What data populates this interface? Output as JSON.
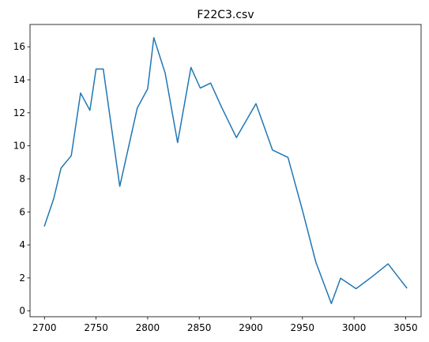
{
  "chart_data": {
    "type": "line",
    "title": "F22C3.csv",
    "xlabel": "",
    "ylabel": "",
    "xlim": [
      2686,
      3065
    ],
    "ylim": [
      -0.35,
      17.35
    ],
    "grid": false,
    "legend": "none",
    "line_color": "#1f77b4",
    "x_ticks": [
      2700,
      2750,
      2800,
      2850,
      2900,
      2950,
      3000,
      3050
    ],
    "x_tick_labels": [
      "2700",
      "2750",
      "2800",
      "2850",
      "2900",
      "2950",
      "3000",
      "3050"
    ],
    "y_ticks": [
      0,
      2,
      4,
      6,
      8,
      10,
      12,
      14,
      16
    ],
    "y_tick_labels": [
      "0",
      "2",
      "4",
      "6",
      "8",
      "10",
      "12",
      "14",
      "16"
    ],
    "series": [
      {
        "x": [
          2700,
          2709,
          2716,
          2726,
          2735,
          2744,
          2750,
          2757,
          2773,
          2790,
          2800,
          2806,
          2817,
          2829,
          2842,
          2851,
          2861,
          2872,
          2886,
          2905,
          2921,
          2936,
          2950,
          2963,
          2978,
          2987,
          3002,
          3017,
          3033,
          3051
        ],
        "y": [
          5.15,
          6.8,
          8.65,
          9.4,
          13.2,
          12.15,
          14.65,
          14.65,
          7.55,
          12.3,
          13.45,
          16.55,
          14.4,
          10.2,
          14.75,
          13.5,
          13.8,
          12.3,
          10.5,
          12.55,
          9.75,
          9.3,
          6.1,
          2.95,
          0.45,
          1.98,
          1.35,
          2.05,
          2.85,
          1.4
        ]
      }
    ]
  }
}
